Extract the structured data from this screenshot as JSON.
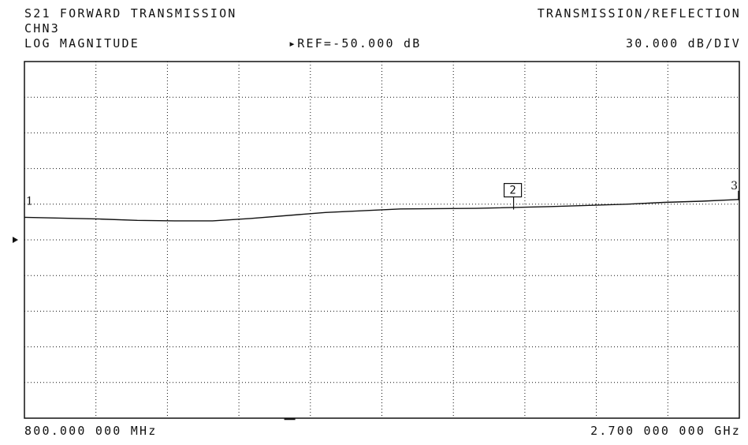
{
  "header": {
    "measurement": "S21 FORWARD TRANSMISSION",
    "mode": "TRANSMISSION/REFLECTION",
    "channel": "CHN3",
    "format": "LOG MAGNITUDE",
    "reference_marker_glyph": "▸",
    "reference": "REF=-50.000 dB",
    "scale": "30.000 dB/DIV"
  },
  "footer": {
    "start_frequency": "800.000 000 MHz",
    "stop_frequency": "2.700 000 000 GHz"
  },
  "colors": {
    "background": "#ffffff",
    "trace": "#111111",
    "grid": "#111111"
  },
  "chart_data": {
    "type": "line",
    "x_unit": "MHz",
    "y_unit": "dB",
    "xlim": [
      800,
      2700
    ],
    "ylim": [
      -200,
      100
    ],
    "reference_level": -50,
    "divisions": {
      "x": 10,
      "y": 10
    },
    "grid": true,
    "series": [
      {
        "x": [
          800,
          1000,
          1100,
          1200,
          1300,
          1400,
          1600,
          1800,
          2000,
          2200,
          2400,
          2500,
          2600,
          2700
        ],
        "y": [
          -31,
          -32.5,
          -33.6,
          -34,
          -34,
          -32,
          -27,
          -24,
          -23.5,
          -22,
          -20,
          -18.5,
          -17.5,
          -16
        ]
      }
    ],
    "markers": [
      {
        "label": "1",
        "x": 800,
        "y": -31,
        "style": "plain"
      },
      {
        "label": "2",
        "x": 2100,
        "y": -22.5,
        "style": "boxed"
      },
      {
        "label": "3",
        "x": 2700,
        "y": -16,
        "style": "plain"
      }
    ]
  }
}
